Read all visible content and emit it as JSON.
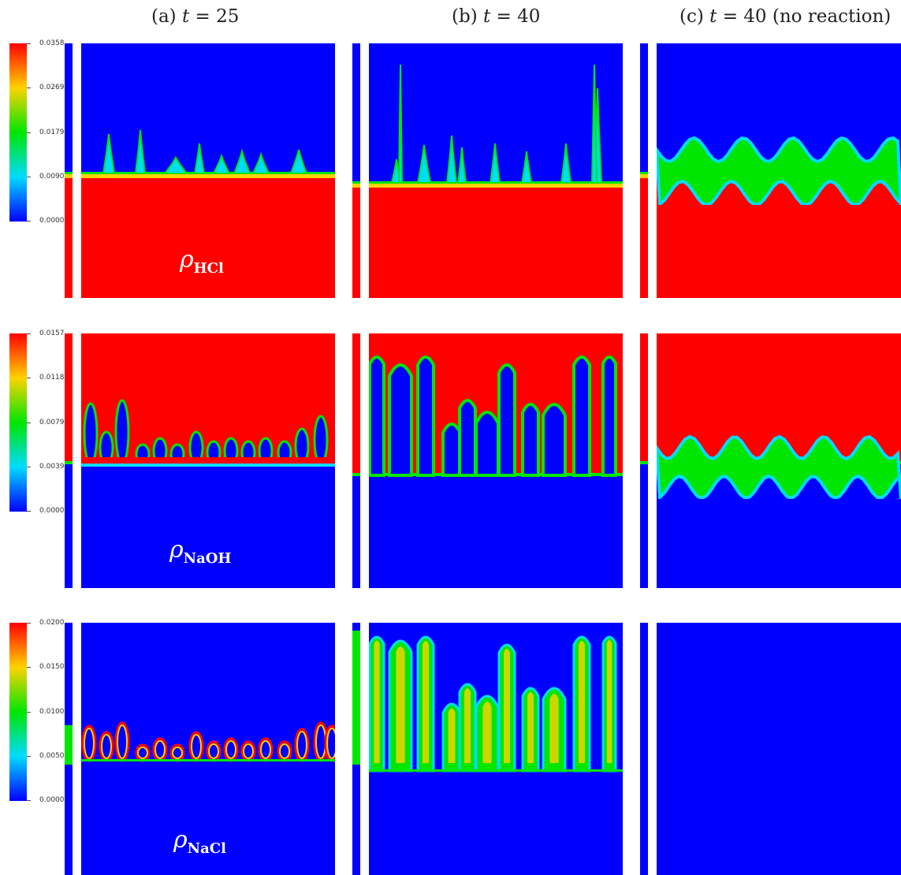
{
  "columns": [
    {
      "prefix": "(a) ",
      "var": "t",
      "rest": " = 25"
    },
    {
      "prefix": "(b) ",
      "var": "t",
      "rest": " = 40"
    },
    {
      "prefix": "(c) ",
      "var": "t",
      "rest": " = 40 (no reaction)"
    }
  ],
  "rows": [
    {
      "field_symbol": "ρ",
      "field_sub": "HCl",
      "colorbar_ticks": [
        "0.0358",
        "0.0269",
        "0.0179",
        "0.0090",
        "0.0000"
      ]
    },
    {
      "field_symbol": "ρ",
      "field_sub": "NaOH",
      "colorbar_ticks": [
        "0.0157",
        "0.0118",
        "0.0079",
        "0.0039",
        "0.0000"
      ]
    },
    {
      "field_symbol": "ρ",
      "field_sub": "NaCl",
      "colorbar_ticks": [
        "0.0200",
        "0.0150",
        "0.0100",
        "0.0050",
        "0.0000"
      ]
    }
  ],
  "colormap": [
    "#0000ff",
    "#00dcff",
    "#00e600",
    "#ffd200",
    "#ff0000"
  ]
}
